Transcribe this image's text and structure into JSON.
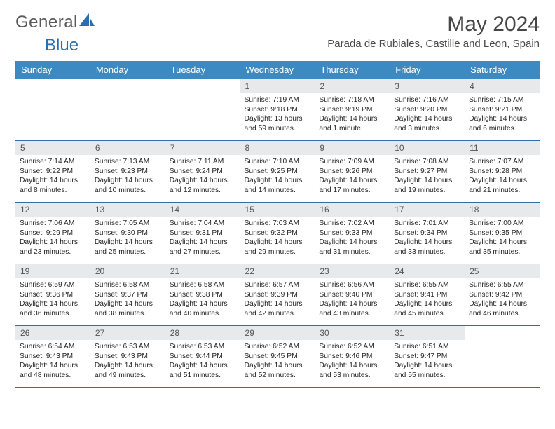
{
  "brand": {
    "part1": "General",
    "part2": "Blue"
  },
  "title": "May 2024",
  "location": "Parada de Rubiales, Castille and Leon, Spain",
  "colors": {
    "header_bg": "#3b8ac4",
    "header_text": "#ffffff",
    "daynum_bg": "#e7e9eb",
    "border": "#2f6fa8",
    "brand_gray": "#5a5a5a",
    "brand_blue": "#2a6db0"
  },
  "weekdays": [
    "Sunday",
    "Monday",
    "Tuesday",
    "Wednesday",
    "Thursday",
    "Friday",
    "Saturday"
  ],
  "weeks": [
    [
      null,
      null,
      null,
      {
        "n": "1",
        "sr": "7:19 AM",
        "ss": "9:18 PM",
        "dl": "13 hours and 59 minutes."
      },
      {
        "n": "2",
        "sr": "7:18 AM",
        "ss": "9:19 PM",
        "dl": "14 hours and 1 minute."
      },
      {
        "n": "3",
        "sr": "7:16 AM",
        "ss": "9:20 PM",
        "dl": "14 hours and 3 minutes."
      },
      {
        "n": "4",
        "sr": "7:15 AM",
        "ss": "9:21 PM",
        "dl": "14 hours and 6 minutes."
      }
    ],
    [
      {
        "n": "5",
        "sr": "7:14 AM",
        "ss": "9:22 PM",
        "dl": "14 hours and 8 minutes."
      },
      {
        "n": "6",
        "sr": "7:13 AM",
        "ss": "9:23 PM",
        "dl": "14 hours and 10 minutes."
      },
      {
        "n": "7",
        "sr": "7:11 AM",
        "ss": "9:24 PM",
        "dl": "14 hours and 12 minutes."
      },
      {
        "n": "8",
        "sr": "7:10 AM",
        "ss": "9:25 PM",
        "dl": "14 hours and 14 minutes."
      },
      {
        "n": "9",
        "sr": "7:09 AM",
        "ss": "9:26 PM",
        "dl": "14 hours and 17 minutes."
      },
      {
        "n": "10",
        "sr": "7:08 AM",
        "ss": "9:27 PM",
        "dl": "14 hours and 19 minutes."
      },
      {
        "n": "11",
        "sr": "7:07 AM",
        "ss": "9:28 PM",
        "dl": "14 hours and 21 minutes."
      }
    ],
    [
      {
        "n": "12",
        "sr": "7:06 AM",
        "ss": "9:29 PM",
        "dl": "14 hours and 23 minutes."
      },
      {
        "n": "13",
        "sr": "7:05 AM",
        "ss": "9:30 PM",
        "dl": "14 hours and 25 minutes."
      },
      {
        "n": "14",
        "sr": "7:04 AM",
        "ss": "9:31 PM",
        "dl": "14 hours and 27 minutes."
      },
      {
        "n": "15",
        "sr": "7:03 AM",
        "ss": "9:32 PM",
        "dl": "14 hours and 29 minutes."
      },
      {
        "n": "16",
        "sr": "7:02 AM",
        "ss": "9:33 PM",
        "dl": "14 hours and 31 minutes."
      },
      {
        "n": "17",
        "sr": "7:01 AM",
        "ss": "9:34 PM",
        "dl": "14 hours and 33 minutes."
      },
      {
        "n": "18",
        "sr": "7:00 AM",
        "ss": "9:35 PM",
        "dl": "14 hours and 35 minutes."
      }
    ],
    [
      {
        "n": "19",
        "sr": "6:59 AM",
        "ss": "9:36 PM",
        "dl": "14 hours and 36 minutes."
      },
      {
        "n": "20",
        "sr": "6:58 AM",
        "ss": "9:37 PM",
        "dl": "14 hours and 38 minutes."
      },
      {
        "n": "21",
        "sr": "6:58 AM",
        "ss": "9:38 PM",
        "dl": "14 hours and 40 minutes."
      },
      {
        "n": "22",
        "sr": "6:57 AM",
        "ss": "9:39 PM",
        "dl": "14 hours and 42 minutes."
      },
      {
        "n": "23",
        "sr": "6:56 AM",
        "ss": "9:40 PM",
        "dl": "14 hours and 43 minutes."
      },
      {
        "n": "24",
        "sr": "6:55 AM",
        "ss": "9:41 PM",
        "dl": "14 hours and 45 minutes."
      },
      {
        "n": "25",
        "sr": "6:55 AM",
        "ss": "9:42 PM",
        "dl": "14 hours and 46 minutes."
      }
    ],
    [
      {
        "n": "26",
        "sr": "6:54 AM",
        "ss": "9:43 PM",
        "dl": "14 hours and 48 minutes."
      },
      {
        "n": "27",
        "sr": "6:53 AM",
        "ss": "9:43 PM",
        "dl": "14 hours and 49 minutes."
      },
      {
        "n": "28",
        "sr": "6:53 AM",
        "ss": "9:44 PM",
        "dl": "14 hours and 51 minutes."
      },
      {
        "n": "29",
        "sr": "6:52 AM",
        "ss": "9:45 PM",
        "dl": "14 hours and 52 minutes."
      },
      {
        "n": "30",
        "sr": "6:52 AM",
        "ss": "9:46 PM",
        "dl": "14 hours and 53 minutes."
      },
      {
        "n": "31",
        "sr": "6:51 AM",
        "ss": "9:47 PM",
        "dl": "14 hours and 55 minutes."
      },
      null
    ]
  ],
  "labels": {
    "sunrise": "Sunrise:",
    "sunset": "Sunset:",
    "daylight": "Daylight:"
  }
}
